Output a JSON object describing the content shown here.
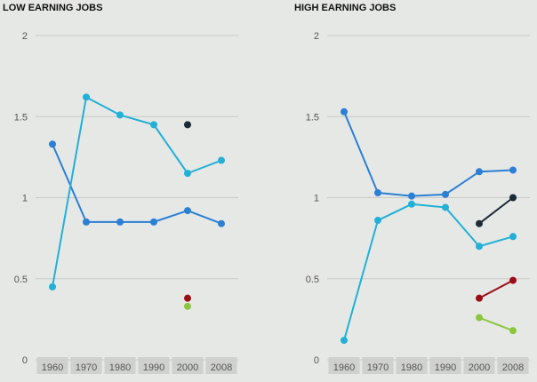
{
  "chart_data": [
    {
      "type": "line",
      "title": "LOW EARNING JOBS",
      "categories": [
        "1960",
        "1970",
        "1980",
        "1990",
        "2000",
        "2008"
      ],
      "y_ticks": [
        "0",
        "0.5",
        "1",
        "1.5",
        "2"
      ],
      "ylim": [
        0,
        2
      ],
      "grid": "horizontal",
      "series": [
        {
          "color": "#2b7fd4",
          "values": [
            1.33,
            0.85,
            0.85,
            0.85,
            0.92,
            0.84
          ]
        },
        {
          "color": "#22b0d6",
          "values": [
            0.45,
            1.62,
            1.51,
            1.45,
            1.15,
            1.23
          ]
        },
        {
          "color": "#1b2a38",
          "values": [
            null,
            null,
            null,
            null,
            1.45,
            null
          ]
        },
        {
          "color": "#9b0d16",
          "values": [
            null,
            null,
            null,
            null,
            0.38,
            null
          ]
        },
        {
          "color": "#8cc63f",
          "values": [
            null,
            null,
            null,
            null,
            0.33,
            null
          ]
        }
      ]
    },
    {
      "type": "line",
      "title": "HIGH EARNING JOBS",
      "categories": [
        "1960",
        "1970",
        "1980",
        "1990",
        "2000",
        "2008"
      ],
      "y_ticks": [
        "0",
        "0.5",
        "1",
        "1.5",
        "2"
      ],
      "ylim": [
        0,
        2
      ],
      "grid": "horizontal",
      "series": [
        {
          "color": "#2b7fd4",
          "values": [
            1.53,
            1.03,
            1.01,
            1.02,
            1.16,
            1.17
          ]
        },
        {
          "color": "#22b0d6",
          "values": [
            0.12,
            0.86,
            0.96,
            0.94,
            0.7,
            0.76
          ]
        },
        {
          "color": "#1b2a38",
          "values": [
            null,
            null,
            null,
            null,
            0.84,
            1.0
          ]
        },
        {
          "color": "#9b0d16",
          "values": [
            null,
            null,
            null,
            null,
            0.38,
            0.49
          ]
        },
        {
          "color": "#8cc63f",
          "values": [
            null,
            null,
            null,
            null,
            0.26,
            0.18
          ]
        }
      ]
    }
  ],
  "colors": {
    "background": "#e6e8e5",
    "gridline": "#c9cbc8",
    "axis_text": "#555555",
    "title_text": "#111111",
    "x_label_box": "#cfd1ce"
  }
}
